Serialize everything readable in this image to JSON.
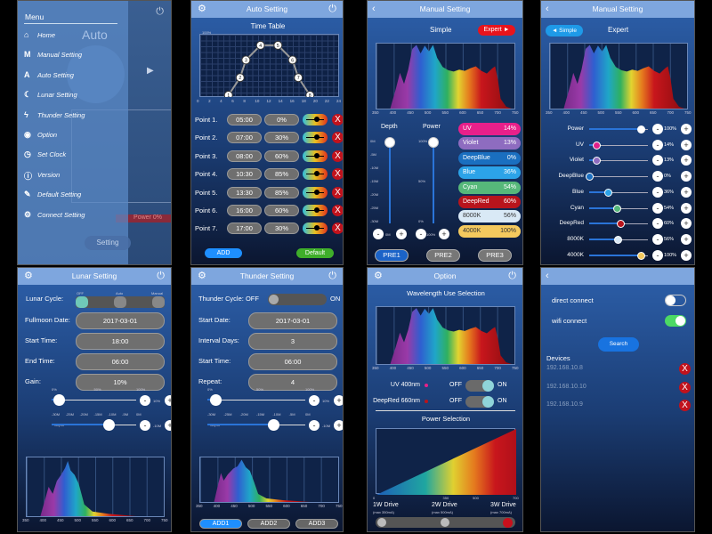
{
  "menu_screen": {
    "menu_title": "Menu",
    "bg_title": "Auto",
    "power_text": "Power 0%",
    "setting_label": "Setting",
    "items": [
      {
        "label": "Home",
        "icon": "home-icon"
      },
      {
        "label": "Manual Setting",
        "icon": "letter-m-icon"
      },
      {
        "label": "Auto Setting",
        "icon": "letter-a-icon"
      },
      {
        "label": "Lunar Setting",
        "icon": "moon-icon"
      },
      {
        "label": "Thunder Setting",
        "icon": "lightning-icon"
      },
      {
        "label": "Option",
        "icon": "option-icon"
      },
      {
        "label": "Set Clock",
        "icon": "clock-icon"
      },
      {
        "label": "Version",
        "icon": "info-icon"
      },
      {
        "label": "Default Setting",
        "icon": "wrench-icon"
      },
      {
        "label": "Connect Setting",
        "icon": "gear-icon"
      }
    ]
  },
  "auto_setting": {
    "title": "Auto Setting",
    "chart_title": "Time Table",
    "y_max_label": "100%",
    "x_ticks": [
      "0",
      "2",
      "4",
      "6",
      "8",
      "10",
      "12",
      "14",
      "16",
      "18",
      "20",
      "22",
      "24"
    ],
    "chart_points": [
      {
        "n": "1",
        "hour": 5,
        "pct": 0
      },
      {
        "n": "2",
        "hour": 7,
        "pct": 30
      },
      {
        "n": "3",
        "hour": 8,
        "pct": 60
      },
      {
        "n": "4",
        "hour": 10.5,
        "pct": 85
      },
      {
        "n": "5",
        "hour": 13.5,
        "pct": 85
      },
      {
        "n": "6",
        "hour": 16,
        "pct": 60
      },
      {
        "n": "7",
        "hour": 17,
        "pct": 30
      },
      {
        "n": "8",
        "hour": 19,
        "pct": 0
      }
    ],
    "rows": [
      {
        "label": "Point 1.",
        "time": "05:00",
        "pct": "0%"
      },
      {
        "label": "Point 2.",
        "time": "07:00",
        "pct": "30%"
      },
      {
        "label": "Point 3.",
        "time": "08:00",
        "pct": "60%"
      },
      {
        "label": "Point 4.",
        "time": "10:30",
        "pct": "85%"
      },
      {
        "label": "Point 5.",
        "time": "13:30",
        "pct": "85%"
      },
      {
        "label": "Point 6.",
        "time": "16:00",
        "pct": "60%"
      },
      {
        "label": "Point 7.",
        "time": "17:00",
        "pct": "30%"
      }
    ],
    "delete_label": "X",
    "add_label": "ADD",
    "default_label": "Default"
  },
  "spectrum_ticks": [
    "350",
    "400",
    "450",
    "500",
    "550",
    "600",
    "650",
    "700",
    "750"
  ],
  "manual_simple": {
    "title": "Manual Setting",
    "mode_label": "Simple",
    "expert_button": "Expert ►",
    "depth_label": "Depth",
    "power_label": "Power",
    "depth_ticks": [
      "0M",
      "-5M",
      "-10M",
      "-15M",
      "-20M",
      "-25M",
      "-30M"
    ],
    "power_ticks": [
      "100%",
      "50%",
      "0%"
    ],
    "depth_value": "0M",
    "power_value": "100%",
    "minus": "-",
    "plus": "+",
    "channels": [
      {
        "name": "UV",
        "value": "14%",
        "color": "#e8208a"
      },
      {
        "name": "Violet",
        "value": "13%",
        "color": "#8e6cc0"
      },
      {
        "name": "DeepBlue",
        "value": "0%",
        "color": "#1a6fc0"
      },
      {
        "name": "Blue",
        "value": "36%",
        "color": "#2ca3e8"
      },
      {
        "name": "Cyan",
        "value": "54%",
        "color": "#56b87a"
      },
      {
        "name": "DeepRed",
        "value": "60%",
        "color": "#b8141c"
      },
      {
        "name": "8000K",
        "value": "56%",
        "color": "#d9e9f6"
      },
      {
        "name": "4000K",
        "value": "100%",
        "color": "#f4c95e"
      }
    ],
    "presets": [
      "PRE1",
      "PRE2",
      "PRE3"
    ]
  },
  "manual_expert": {
    "title": "Manual Setting",
    "simple_button": "◄ Simple",
    "mode_label": "Expert",
    "rows": [
      {
        "name": "Power",
        "value": "100%",
        "pct": 100,
        "color": "#ffffff"
      },
      {
        "name": "UV",
        "value": "14%",
        "pct": 14,
        "color": "#e0208a"
      },
      {
        "name": "Violet",
        "value": "13%",
        "pct": 13,
        "color": "#8e6cc0"
      },
      {
        "name": "DeepBlue",
        "value": "0%",
        "pct": 0,
        "color": "#1a6fc0"
      },
      {
        "name": "Blue",
        "value": "36%",
        "pct": 36,
        "color": "#2ca3e8"
      },
      {
        "name": "Cyan",
        "value": "54%",
        "pct": 54,
        "color": "#56b87a"
      },
      {
        "name": "DeepRed",
        "value": "60%",
        "pct": 60,
        "color": "#b8141c"
      },
      {
        "name": "8000K",
        "value": "56%",
        "pct": 56,
        "color": "#d9e9f6"
      },
      {
        "name": "4000K",
        "value": "100%",
        "pct": 100,
        "color": "#f4c95e"
      }
    ]
  },
  "lunar": {
    "title": "Lunar Setting",
    "cycle_label": "Lunar Cycle:",
    "cycle_options": [
      "OFF",
      "Auto",
      "Manual"
    ],
    "cycle_selected": "OFF",
    "fields": [
      {
        "label": "Fullmoon Date:",
        "value": "2017-03-01"
      },
      {
        "label": "Start Time:",
        "value": "18:00"
      },
      {
        "label": "End Time:",
        "value": "06:00"
      },
      {
        "label": "Gain:",
        "value": "10%"
      }
    ],
    "power_label": "Power",
    "power_ticks": [
      "0%",
      "50%",
      "100%"
    ],
    "power_value": "10%",
    "power_pct": 10,
    "depth_label": "Depth",
    "depth_ticks": [
      "-30M",
      "-25M",
      "-20M",
      "-15M",
      "-10M",
      "-5M",
      "0M"
    ],
    "depth_value": "-10M"
  },
  "thunder": {
    "title": "Thunder Setting",
    "cycle_label": "Thunder Cycle: OFF",
    "on_label": "ON",
    "fields": [
      {
        "label": "Start Date:",
        "value": "2017-03-01"
      },
      {
        "label": "Interval Days:",
        "value": "3"
      },
      {
        "label": "Start Time:",
        "value": "06:00"
      },
      {
        "label": "Repeat:",
        "value": "4"
      }
    ],
    "power_label": "Power",
    "power_ticks": [
      "0%",
      "50%",
      "100%"
    ],
    "power_value": "10%",
    "power_pct": 10,
    "depth_label": "Depth",
    "depth_ticks": [
      "-30M",
      "-25M",
      "-20M",
      "-15M",
      "-10M",
      "-5M",
      "0M"
    ],
    "depth_value": "-10M",
    "buttons": [
      "ADD1",
      "ADD2",
      "ADD3"
    ]
  },
  "option": {
    "title": "Option",
    "wavelength_title": "Wavelength Use Selection",
    "toggles": [
      {
        "label": "UV 400nm",
        "dot_color": "#e8208a",
        "off": "OFF",
        "on": "ON",
        "state": "on"
      },
      {
        "label": "DeepRed 660nm",
        "dot_color": "#b8141c",
        "off": "OFF",
        "on": "ON",
        "state": "on"
      }
    ],
    "power_title": "Power Selection",
    "power_ticks": [
      "0",
      "350",
      "500",
      "700"
    ],
    "drives": [
      {
        "label": "1W Drive",
        "sub": "(max 350mA)"
      },
      {
        "label": "2W Drive",
        "sub": "(max 500mA)"
      },
      {
        "label": "3W Drive",
        "sub": "(max 700mA)"
      }
    ],
    "selected_drive": "3W Drive"
  },
  "connect": {
    "direct_label": "direct connect",
    "direct_on": false,
    "wifi_label": "wifi connect",
    "wifi_on": true,
    "search_label": "Search",
    "devices_label": "Devices",
    "devices": [
      "192.168.10.8",
      "192.168.10.10",
      "192.168.10.9"
    ]
  },
  "colors": {
    "header": "#7ea6de",
    "accent_blue": "#1e8fff",
    "expert_red": "#e8141c",
    "default_green": "#3fae2a",
    "toggle_green": "#4cd964",
    "delete_red": "#c1121c"
  }
}
